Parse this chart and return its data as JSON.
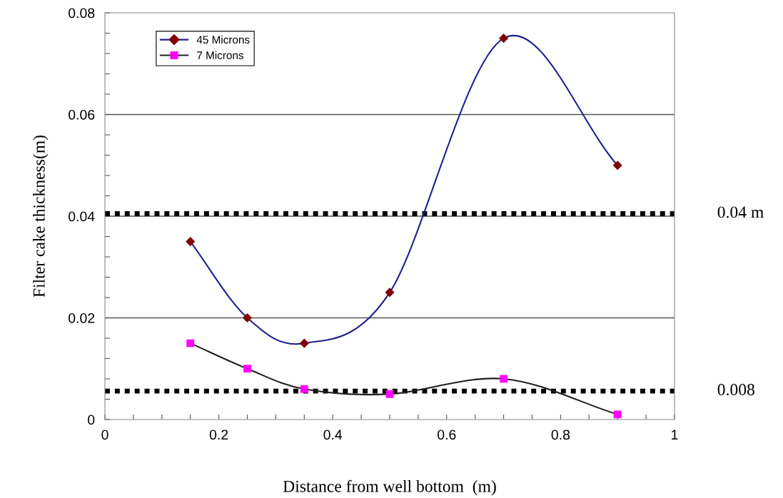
{
  "chart_data": {
    "type": "line",
    "xlabel": "Distance from well bottom  (m)",
    "ylabel": "Filter cake thickness(m)",
    "x": [
      0.15,
      0.25,
      0.35,
      0.5,
      0.7,
      0.9
    ],
    "series": [
      {
        "name": "45 Microns",
        "color": "#1f1f8f",
        "marker": "diamond",
        "colors": [
          "#7f0000",
          "#7f0000",
          "#7f0000",
          "#7f0000",
          "#7f0000",
          "#7f0000"
        ],
        "values": [
          0.035,
          0.02,
          0.015,
          0.025,
          0.075,
          0.05
        ]
      },
      {
        "name": "7 Microns",
        "color": "#202020",
        "marker": "square",
        "colors": [
          "#ff00ff",
          "#ff00ff",
          "#ff00ff",
          "#ff00ff",
          "#ff00ff",
          "#ff00ff"
        ],
        "values": [
          0.015,
          0.01,
          0.006,
          0.005,
          0.008,
          0.001
        ]
      }
    ],
    "xlim": [
      0,
      1
    ],
    "ylim": [
      0,
      0.08
    ],
    "xticks": [
      {
        "value": 0,
        "label": "0"
      },
      {
        "value": 0.05,
        "label": null
      },
      {
        "value": 0.1,
        "label": null
      },
      {
        "value": 0.15,
        "label": null
      },
      {
        "value": 0.2,
        "label": "0.2"
      },
      {
        "value": 0.25,
        "label": null
      },
      {
        "value": 0.3,
        "label": null
      },
      {
        "value": 0.35,
        "label": null
      },
      {
        "value": 0.4,
        "label": "0.4"
      },
      {
        "value": 0.45,
        "label": null
      },
      {
        "value": 0.5,
        "label": null
      },
      {
        "value": 0.55,
        "label": null
      },
      {
        "value": 0.6,
        "label": "0.6"
      },
      {
        "value": 0.65,
        "label": null
      },
      {
        "value": 0.7,
        "label": null
      },
      {
        "value": 0.75,
        "label": null
      },
      {
        "value": 0.8,
        "label": "0.8"
      },
      {
        "value": 0.85,
        "label": null
      },
      {
        "value": 0.9,
        "label": null
      },
      {
        "value": 0.95,
        "label": null
      },
      {
        "value": 1,
        "label": "1"
      }
    ],
    "yticks": [
      {
        "value": 0,
        "label": "0"
      },
      {
        "value": 0.004,
        "label": null
      },
      {
        "value": 0.008,
        "label": null
      },
      {
        "value": 0.012,
        "label": null
      },
      {
        "value": 0.016,
        "label": null
      },
      {
        "value": 0.02,
        "label": "0.02"
      },
      {
        "value": 0.024,
        "label": null
      },
      {
        "value": 0.028,
        "label": null
      },
      {
        "value": 0.032,
        "label": null
      },
      {
        "value": 0.036,
        "label": null
      },
      {
        "value": 0.04,
        "label": "0.04"
      },
      {
        "value": 0.044,
        "label": null
      },
      {
        "value": 0.048,
        "label": null
      },
      {
        "value": 0.052,
        "label": null
      },
      {
        "value": 0.056,
        "label": null
      },
      {
        "value": 0.06,
        "label": "0.06"
      },
      {
        "value": 0.064,
        "label": null
      },
      {
        "value": 0.068,
        "label": null
      },
      {
        "value": 0.072,
        "label": null
      },
      {
        "value": 0.076,
        "label": null
      },
      {
        "value": 0.08,
        "label": "0.08"
      }
    ],
    "grid": "y",
    "legend": "top left",
    "line_style": "solid",
    "ref_lines": [
      {
        "axis": "y",
        "value": 0.0405,
        "color": "#000000",
        "line_style": "dotted"
      },
      {
        "axis": "y",
        "value": 0.0056,
        "color": "#000000",
        "line_style": "dotted"
      }
    ],
    "annotations": [
      "0.04 m",
      "0.008"
    ]
  }
}
